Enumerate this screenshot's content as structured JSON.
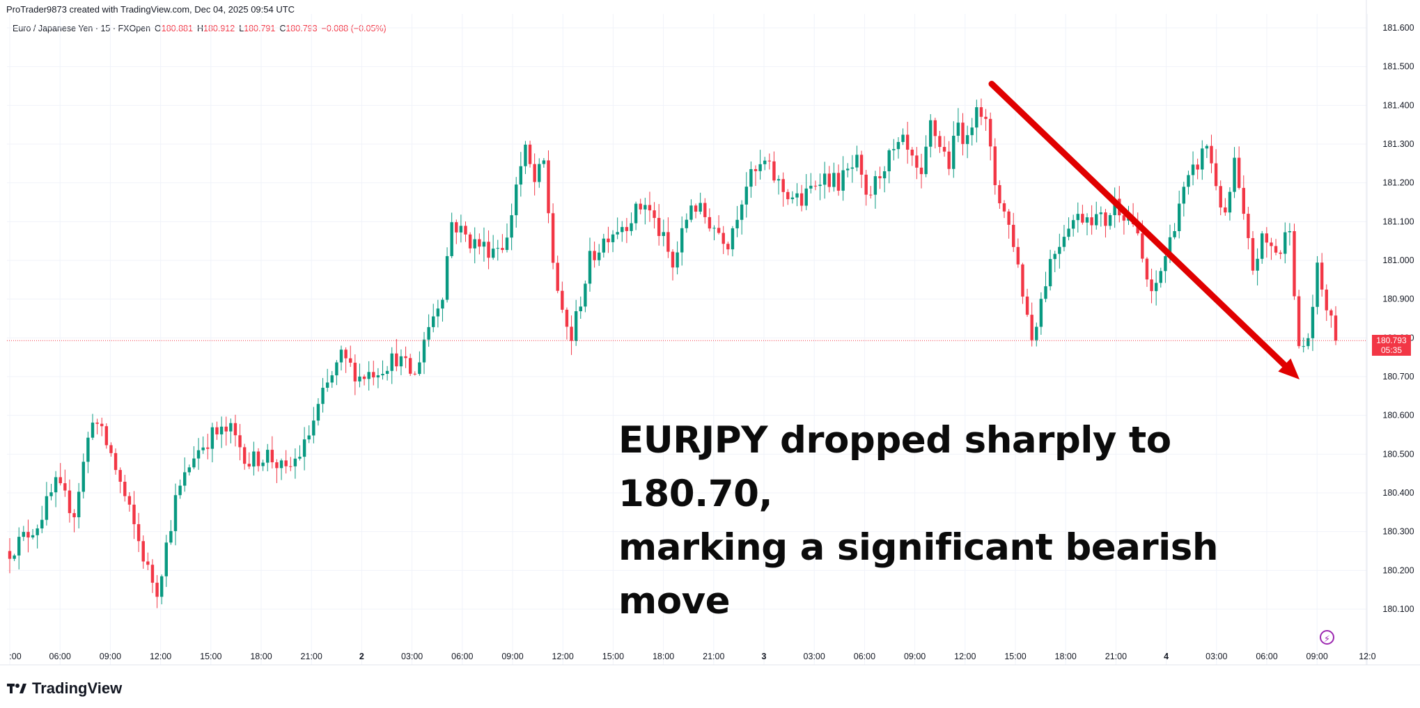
{
  "header": {
    "credit": "ProTrader9873 created with TradingView.com, Dec 04, 2025 09:54 UTC"
  },
  "legend": {
    "symbol": "Euro / Japanese Yen · 15 · FXOpen",
    "open_label": "O",
    "open": "180.881",
    "high_label": "H",
    "high": "180.912",
    "low_label": "L",
    "low": "180.791",
    "close_label": "C",
    "close": "180.793",
    "change": "−0.088 (−0.05%)"
  },
  "price_tag": {
    "price": "180.793",
    "countdown": "05:35"
  },
  "annotation": {
    "line1": "EURJPY dropped sharply to 180.70,",
    "line2": "marking a significant bearish move"
  },
  "footer": {
    "brand": "TradingView"
  },
  "colors": {
    "up": "#089981",
    "down": "#f23645",
    "arrow": "#e00000",
    "grid": "#f0f3fa",
    "axis_text": "#131722"
  },
  "icons": {
    "logo": "tradingview-logo-icon",
    "bolt": "lightning-icon"
  },
  "chart_data": {
    "type": "candlestick",
    "y_axis_ticks": [
      "181.600",
      "181.500",
      "181.400",
      "181.300",
      "181.200",
      "181.100",
      "181.000",
      "180.900",
      "180.800",
      "180.700",
      "180.600",
      "180.500",
      "180.400",
      "180.300",
      "180.200",
      "180.100"
    ],
    "y_tick_values": [
      181.6,
      181.5,
      181.4,
      181.3,
      181.2,
      181.1,
      181.0,
      180.9,
      180.8,
      180.7,
      180.6,
      180.5,
      180.4,
      180.3,
      180.2,
      180.1
    ],
    "x_axis_ticks": [
      ":00",
      "06:00",
      "09:00",
      "12:00",
      "15:00",
      "18:00",
      "21:00",
      "2",
      "03:00",
      "06:00",
      "09:00",
      "12:00",
      "15:00",
      "18:00",
      "21:00",
      "3",
      "03:00",
      "06:00",
      "09:00",
      "12:00",
      "15:00",
      "18:00",
      "21:00",
      "4",
      "03:00",
      "06:00",
      "09:00",
      "12:0"
    ],
    "x_tick_bold": [
      false,
      false,
      false,
      false,
      false,
      false,
      false,
      true,
      false,
      false,
      false,
      false,
      false,
      false,
      false,
      true,
      false,
      false,
      false,
      false,
      false,
      false,
      false,
      true,
      false,
      false,
      false,
      false
    ],
    "grid": true,
    "current_price": 180.793,
    "arrow": {
      "from_price": 181.45,
      "to_price": 180.7,
      "direction": "down"
    },
    "anchors": [
      [
        0,
        180.25
      ],
      [
        6,
        180.32
      ],
      [
        10,
        180.42
      ],
      [
        14,
        180.35
      ],
      [
        18,
        180.6
      ],
      [
        22,
        180.5
      ],
      [
        26,
        180.35
      ],
      [
        30,
        180.2
      ],
      [
        32,
        180.15
      ],
      [
        36,
        180.38
      ],
      [
        40,
        180.5
      ],
      [
        44,
        180.55
      ],
      [
        48,
        180.56
      ],
      [
        52,
        180.48
      ],
      [
        56,
        180.5
      ],
      [
        60,
        180.45
      ],
      [
        64,
        180.52
      ],
      [
        68,
        180.65
      ],
      [
        72,
        180.75
      ],
      [
        76,
        180.7
      ],
      [
        80,
        180.72
      ],
      [
        84,
        180.75
      ],
      [
        88,
        180.7
      ],
      [
        90,
        180.8
      ],
      [
        94,
        180.92
      ],
      [
        96,
        181.1
      ],
      [
        100,
        181.05
      ],
      [
        104,
        181.03
      ],
      [
        108,
        181.05
      ],
      [
        110,
        181.2
      ],
      [
        112,
        181.28
      ],
      [
        114,
        181.2
      ],
      [
        116,
        181.25
      ],
      [
        118,
        181.0
      ],
      [
        120,
        180.85
      ],
      [
        122,
        180.8
      ],
      [
        126,
        181.0
      ],
      [
        130,
        181.07
      ],
      [
        134,
        181.1
      ],
      [
        138,
        181.15
      ],
      [
        142,
        181.05
      ],
      [
        144,
        180.98
      ],
      [
        148,
        181.15
      ],
      [
        152,
        181.1
      ],
      [
        156,
        181.05
      ],
      [
        160,
        181.2
      ],
      [
        164,
        181.25
      ],
      [
        168,
        181.18
      ],
      [
        172,
        181.15
      ],
      [
        176,
        181.22
      ],
      [
        180,
        181.2
      ],
      [
        184,
        181.25
      ],
      [
        186,
        181.15
      ],
      [
        190,
        181.25
      ],
      [
        194,
        181.3
      ],
      [
        198,
        181.2
      ],
      [
        200,
        181.35
      ],
      [
        204,
        181.25
      ],
      [
        206,
        181.35
      ],
      [
        208,
        181.3
      ],
      [
        210,
        181.42
      ],
      [
        212,
        181.35
      ],
      [
        214,
        181.2
      ],
      [
        218,
        181.05
      ],
      [
        220,
        180.92
      ],
      [
        222,
        180.8
      ],
      [
        226,
        181.0
      ],
      [
        230,
        181.1
      ],
      [
        234,
        181.12
      ],
      [
        238,
        181.1
      ],
      [
        240,
        181.15
      ],
      [
        244,
        181.1
      ],
      [
        246,
        181.0
      ],
      [
        248,
        180.9
      ],
      [
        252,
        181.05
      ],
      [
        254,
        181.15
      ],
      [
        258,
        181.25
      ],
      [
        260,
        181.3
      ],
      [
        262,
        181.2
      ],
      [
        264,
        181.1
      ],
      [
        266,
        181.25
      ],
      [
        268,
        181.1
      ],
      [
        270,
        180.98
      ],
      [
        272,
        181.05
      ],
      [
        276,
        181.02
      ],
      [
        278,
        181.1
      ],
      [
        280,
        180.76
      ],
      [
        282,
        180.8
      ],
      [
        284,
        180.97
      ],
      [
        286,
        180.88
      ],
      [
        288,
        180.79
      ]
    ]
  }
}
